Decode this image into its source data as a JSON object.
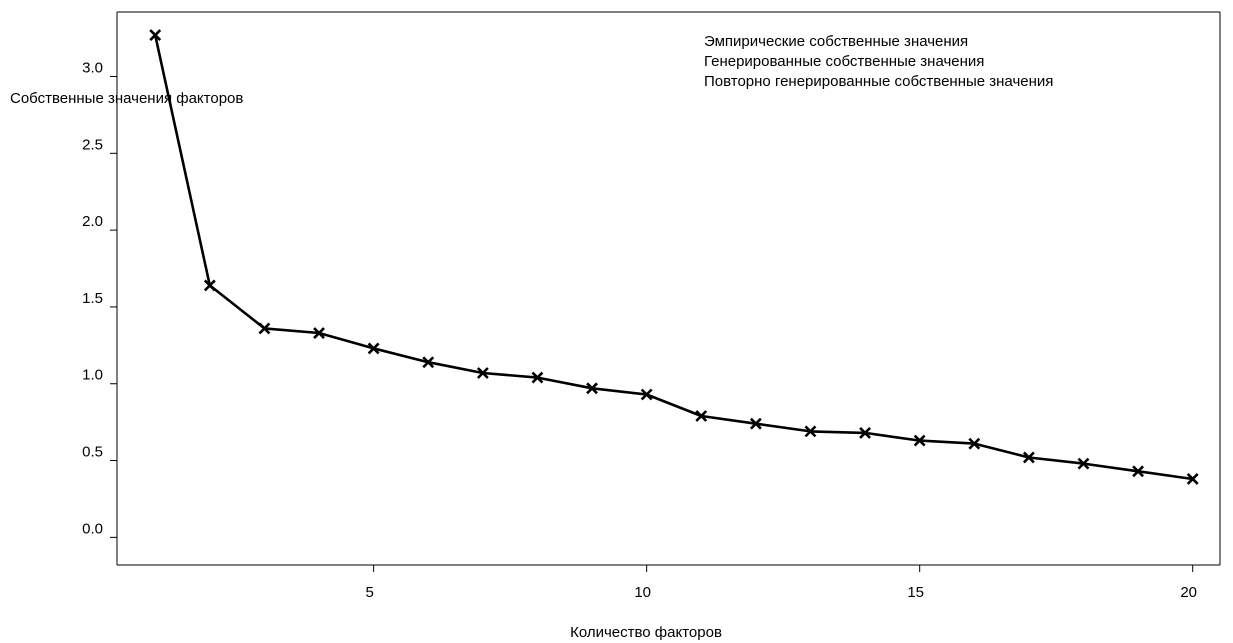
{
  "chart_data": {
    "type": "line",
    "title": "",
    "xlabel": "Количество факторов",
    "ylabel": "Собственные значения факторов",
    "xlim": [
      0.3,
      20.5
    ],
    "ylim": [
      -0.18,
      3.42
    ],
    "x_ticks": [
      5,
      10,
      15,
      20
    ],
    "y_ticks": [
      0.0,
      0.5,
      1.0,
      1.5,
      2.0,
      2.5,
      3.0
    ],
    "x_tick_labels": [
      "5",
      "10",
      "15",
      "20"
    ],
    "y_tick_labels": [
      "0.0",
      "0.5",
      "1.0",
      "1.5",
      "2.0",
      "2.5",
      "3.0"
    ],
    "grid": false,
    "legend_position": "top-right",
    "legend": [
      "Эмпирические собственные значения",
      "Генерированные собственные значения",
      "Повторно генерированные собственные значения"
    ],
    "marker": "x",
    "color": "#000000",
    "series": [
      {
        "x": [
          1,
          2,
          3,
          4,
          5,
          6,
          7,
          8,
          9,
          10,
          11,
          12,
          13,
          14,
          15,
          16,
          17,
          18,
          19,
          20
        ],
        "values": [
          3.27,
          1.64,
          1.36,
          1.33,
          1.23,
          1.14,
          1.07,
          1.04,
          0.97,
          0.93,
          0.79,
          0.74,
          0.69,
          0.68,
          0.63,
          0.61,
          0.52,
          0.48,
          0.43,
          0.38
        ]
      }
    ]
  }
}
